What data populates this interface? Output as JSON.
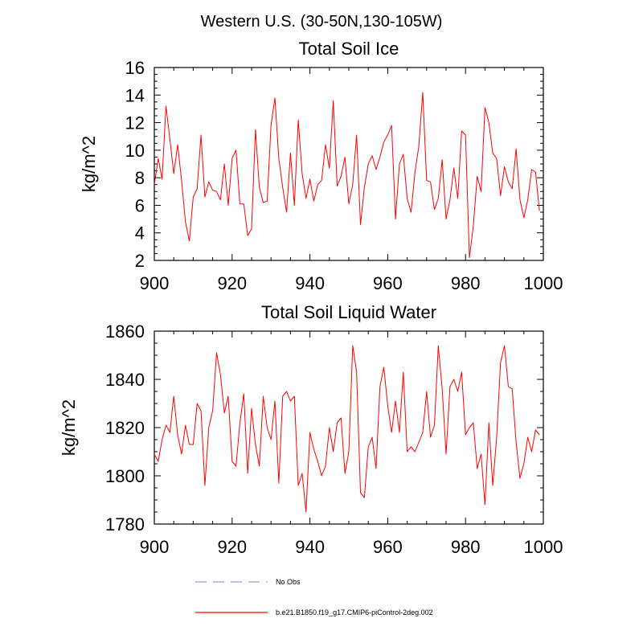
{
  "title": "Western U.S. (30-50N,130-105W)",
  "chart_data": [
    {
      "type": "line",
      "title": "Total Soil Ice",
      "xlabel": "",
      "ylabel": "kg/m^2",
      "xlim": [
        900,
        1000
      ],
      "ylim": [
        2,
        16
      ],
      "xticks": [
        900,
        920,
        940,
        960,
        980,
        1000
      ],
      "yticks": [
        2,
        4,
        6,
        8,
        10,
        12,
        14,
        16
      ],
      "grid": false,
      "series": [
        {
          "name": "b.e21.B1850.f19_g17.CMIP6-piControl-2deg.002",
          "color": "#ff0000",
          "x_start": 900,
          "values": [
            7.5,
            9.4,
            7.9,
            13.2,
            10.8,
            8.3,
            10.4,
            7.8,
            4.8,
            3.4,
            6.6,
            7.2,
            11.1,
            6.6,
            7.7,
            7.1,
            7.0,
            6.4,
            9.0,
            6.0,
            9.4,
            10.0,
            6.1,
            6.1,
            3.8,
            4.3,
            11.5,
            7.3,
            6.2,
            6.3,
            11.8,
            13.8,
            9.4,
            7.3,
            5.5,
            9.8,
            6.0,
            12.2,
            8.3,
            6.5,
            7.9,
            6.3,
            7.5,
            7.8,
            10.4,
            8.7,
            13.6,
            7.4,
            8.1,
            9.5,
            6.1,
            7.5,
            11.1,
            4.6,
            7.3,
            9.0,
            9.6,
            8.6,
            9.5,
            10.6,
            11.1,
            11.8,
            5.0,
            9.0,
            9.7,
            6.5,
            5.5,
            8.4,
            10.3,
            14.2,
            7.8,
            7.7,
            5.7,
            6.5,
            9.3,
            5.0,
            6.4,
            8.7,
            6.5,
            11.4,
            11.1,
            2.2,
            4.5,
            8.1,
            7.0,
            13.1,
            12.0,
            9.8,
            9.4,
            6.7,
            8.8,
            7.7,
            7.2,
            10.1,
            6.4,
            5.1,
            6.4,
            8.6,
            8.4,
            5.6
          ]
        }
      ]
    },
    {
      "type": "line",
      "title": "Total Soil Liquid Water",
      "xlabel": "",
      "ylabel": "kg/m^2",
      "xlim": [
        900,
        1000
      ],
      "ylim": [
        1780,
        1860
      ],
      "xticks": [
        900,
        920,
        940,
        960,
        980,
        1000
      ],
      "yticks": [
        1780,
        1800,
        1820,
        1840,
        1860
      ],
      "grid": false,
      "series": [
        {
          "name": "b.e21.B1850.f19_g17.CMIP6-piControl-2deg.002",
          "color": "#ff0000",
          "x_start": 900,
          "values": [
            1809,
            1806,
            1815,
            1821,
            1818,
            1833,
            1817,
            1809,
            1821,
            1813,
            1813,
            1830,
            1827,
            1796,
            1820,
            1827,
            1851,
            1842,
            1826,
            1833,
            1806,
            1804,
            1822,
            1834,
            1801,
            1828,
            1813,
            1804,
            1833,
            1820,
            1815,
            1831,
            1797,
            1833,
            1835,
            1831,
            1833,
            1796,
            1801,
            1785,
            1818,
            1811,
            1806,
            1800,
            1804,
            1820,
            1810,
            1822,
            1824,
            1801,
            1810,
            1854,
            1843,
            1793,
            1791,
            1812,
            1816,
            1803,
            1837,
            1845,
            1829,
            1818,
            1831,
            1818,
            1843,
            1810,
            1812,
            1810,
            1814,
            1818,
            1835,
            1816,
            1821,
            1854,
            1836,
            1809,
            1837,
            1840,
            1835,
            1843,
            1817,
            1820,
            1822,
            1803,
            1809,
            1788,
            1822,
            1796,
            1816,
            1847,
            1854,
            1837,
            1836,
            1814,
            1799,
            1805,
            1816,
            1810,
            1819,
            1817
          ]
        }
      ]
    }
  ],
  "legend": [
    {
      "label": "No Obs",
      "color": "#9a9ae6",
      "style": "dashed"
    },
    {
      "label": "b.e21.B1850.f19_g17.CMIP6-piControl-2deg.002",
      "color": "#ff0000",
      "style": "solid"
    }
  ]
}
